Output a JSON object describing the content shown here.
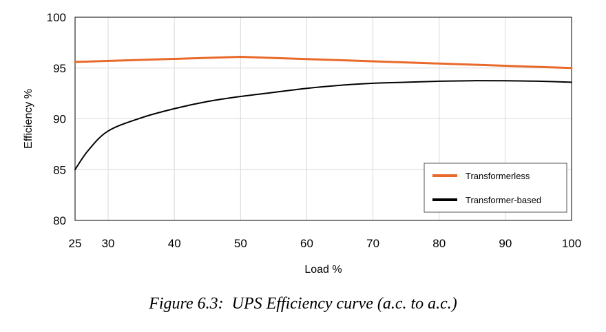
{
  "caption": "Figure 6.3:  UPS Efficiency curve (a.c. to a.c.)",
  "chart_data": {
    "type": "line",
    "xlabel": "Load %",
    "ylabel": "Efficiency %",
    "xlim": [
      25,
      100
    ],
    "ylim": [
      80,
      100
    ],
    "xticks": [
      25,
      30,
      40,
      50,
      60,
      70,
      80,
      90,
      100
    ],
    "yticks": [
      80,
      85,
      90,
      95,
      100
    ],
    "grid": true,
    "legend_position": "bottom-right",
    "series": [
      {
        "name": "Transformerless",
        "color": "#E8692A",
        "x": [
          25,
          50,
          100
        ],
        "y": [
          95.6,
          96.1,
          95.0
        ]
      },
      {
        "name": "Transformer-based",
        "color": "#000000",
        "x": [
          25,
          27,
          30,
          35,
          40,
          45,
          50,
          55,
          60,
          65,
          70,
          75,
          80,
          85,
          90,
          95,
          100
        ],
        "y": [
          85.0,
          86.9,
          88.8,
          90.1,
          91.0,
          91.7,
          92.2,
          92.6,
          93.0,
          93.3,
          93.5,
          93.6,
          93.7,
          93.75,
          93.75,
          93.7,
          93.6
        ]
      }
    ]
  }
}
